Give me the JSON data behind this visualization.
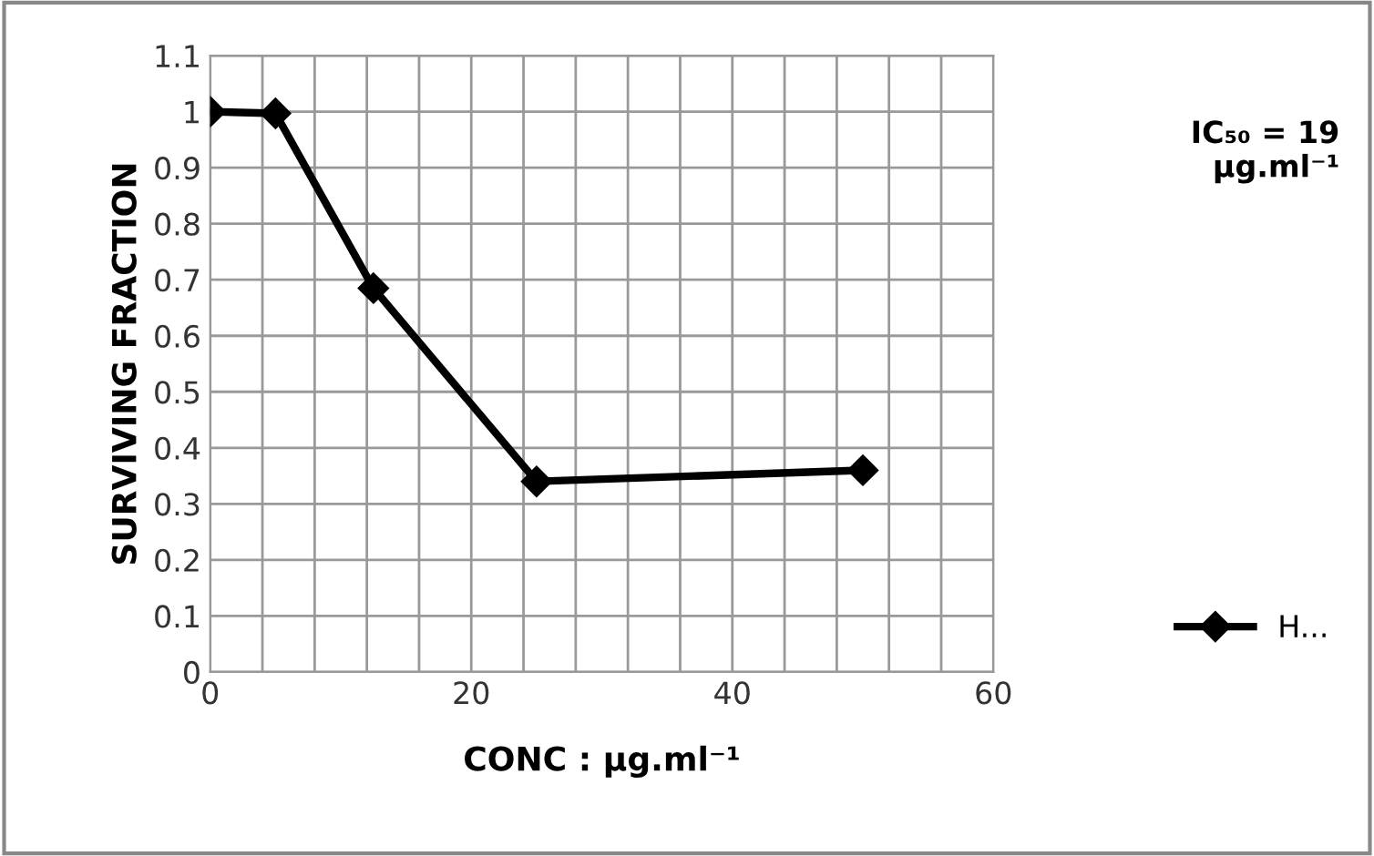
{
  "chart_data": {
    "type": "line",
    "xlabel": "CONC : μg.ml⁻¹",
    "ylabel": "SURVIVING FRACTION",
    "annotations": [
      "IC₅₀ = 19\nμg.ml⁻¹"
    ],
    "x": [
      0,
      5,
      12.5,
      25,
      50
    ],
    "series": [
      {
        "name": "H...",
        "color": "#000000",
        "values": [
          1.0,
          0.997,
          0.685,
          0.34,
          0.36
        ]
      }
    ],
    "xlim": [
      0,
      60
    ],
    "xticks": [
      0,
      {
        "value": 4,
        "label": null
      },
      {
        "value": 8,
        "label": null
      },
      {
        "value": 12,
        "label": null
      },
      {
        "value": 16,
        "label": null
      },
      20,
      {
        "value": 24,
        "label": null
      },
      {
        "value": 28,
        "label": null
      },
      {
        "value": 32,
        "label": null
      },
      {
        "value": 36,
        "label": null
      },
      40,
      {
        "value": 44,
        "label": null
      },
      {
        "value": 48,
        "label": null
      },
      {
        "value": 52,
        "label": null
      },
      {
        "value": 56,
        "label": null
      },
      60
    ],
    "ylim": [
      0,
      1.1
    ],
    "yticks": [
      0,
      0.1,
      0.2,
      0.3,
      0.4,
      0.5,
      0.6,
      0.7,
      0.8,
      0.9,
      1,
      1.1
    ],
    "grid": true,
    "legend": "right",
    "marker": "diamond",
    "line_style": "solid"
  }
}
